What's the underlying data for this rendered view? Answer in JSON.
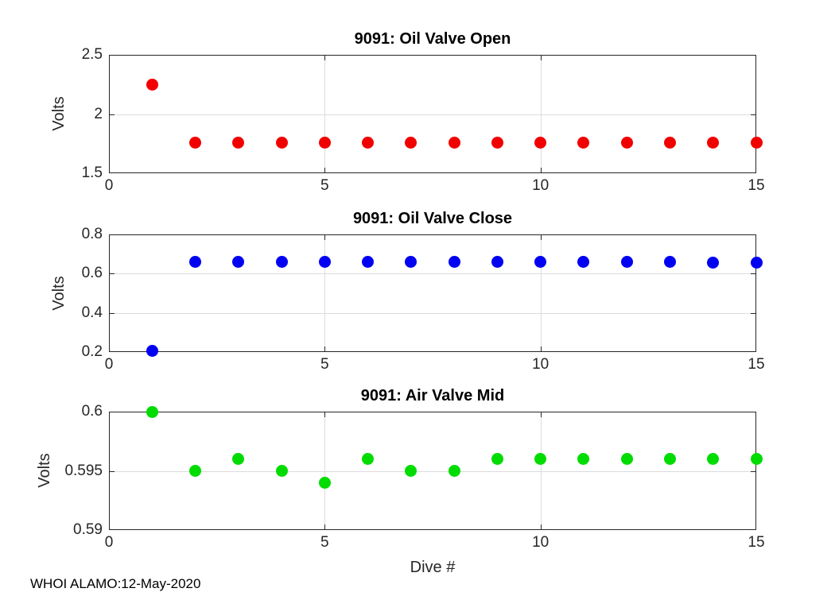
{
  "figure": {
    "xlabel": "Dive #",
    "footer": "WHOI ALAMO:12-May-2020",
    "background_color": "#ffffff",
    "axis_color": "#262626",
    "grid_color": "#dcdcdc"
  },
  "chart_data": [
    {
      "type": "scatter",
      "title": "9091: Oil Valve Open",
      "ylabel": "Volts",
      "marker_color": "#f20000",
      "marker_name": "red-filled-circle",
      "x": [
        1,
        2,
        3,
        4,
        5,
        6,
        7,
        8,
        9,
        10,
        11,
        12,
        13,
        14,
        15
      ],
      "y": [
        2.25,
        1.76,
        1.76,
        1.76,
        1.76,
        1.76,
        1.76,
        1.76,
        1.76,
        1.76,
        1.76,
        1.76,
        1.76,
        1.76,
        1.76
      ],
      "xlim": [
        0,
        15
      ],
      "ylim": [
        1.5,
        2.5
      ],
      "xticks": [
        0,
        5,
        10,
        15
      ],
      "xtick_labels": [
        "0",
        "5",
        "10",
        "15"
      ],
      "yticks": [
        1.5,
        2,
        2.5
      ],
      "ytick_labels": [
        "1.5",
        "2",
        "2.5"
      ],
      "grid": true,
      "legend": "none"
    },
    {
      "type": "scatter",
      "title": "9091: Oil Valve Close",
      "ylabel": "Volts",
      "marker_color": "#0000f2",
      "marker_name": "blue-filled-circle",
      "x": [
        1,
        2,
        3,
        4,
        5,
        6,
        7,
        8,
        9,
        10,
        11,
        12,
        13,
        14,
        15
      ],
      "y": [
        0.205,
        0.66,
        0.66,
        0.66,
        0.66,
        0.66,
        0.66,
        0.66,
        0.66,
        0.66,
        0.66,
        0.66,
        0.66,
        0.655,
        0.655
      ],
      "xlim": [
        0,
        15
      ],
      "ylim": [
        0.2,
        0.8
      ],
      "xticks": [
        0,
        5,
        10,
        15
      ],
      "xtick_labels": [
        "0",
        "5",
        "10",
        "15"
      ],
      "yticks": [
        0.2,
        0.4,
        0.6,
        0.8
      ],
      "ytick_labels": [
        "0.2",
        "0.4",
        "0.6",
        "0.8"
      ],
      "grid": true,
      "legend": "none"
    },
    {
      "type": "scatter",
      "title": "9091: Air Valve Mid",
      "ylabel": "Volts",
      "marker_color": "#00dc00",
      "marker_name": "green-filled-circle",
      "x": [
        1,
        2,
        3,
        4,
        5,
        6,
        7,
        8,
        9,
        10,
        11,
        12,
        13,
        14,
        15
      ],
      "y": [
        0.6,
        0.595,
        0.596,
        0.595,
        0.594,
        0.596,
        0.595,
        0.595,
        0.596,
        0.596,
        0.596,
        0.596,
        0.596,
        0.596,
        0.596
      ],
      "xlim": [
        0,
        15
      ],
      "ylim": [
        0.59,
        0.6
      ],
      "xticks": [
        0,
        5,
        10,
        15
      ],
      "xtick_labels": [
        "0",
        "5",
        "10",
        "15"
      ],
      "yticks": [
        0.59,
        0.595,
        0.6
      ],
      "ytick_labels": [
        "0.59",
        "0.595",
        "0.6"
      ],
      "grid": true,
      "legend": "none"
    }
  ]
}
